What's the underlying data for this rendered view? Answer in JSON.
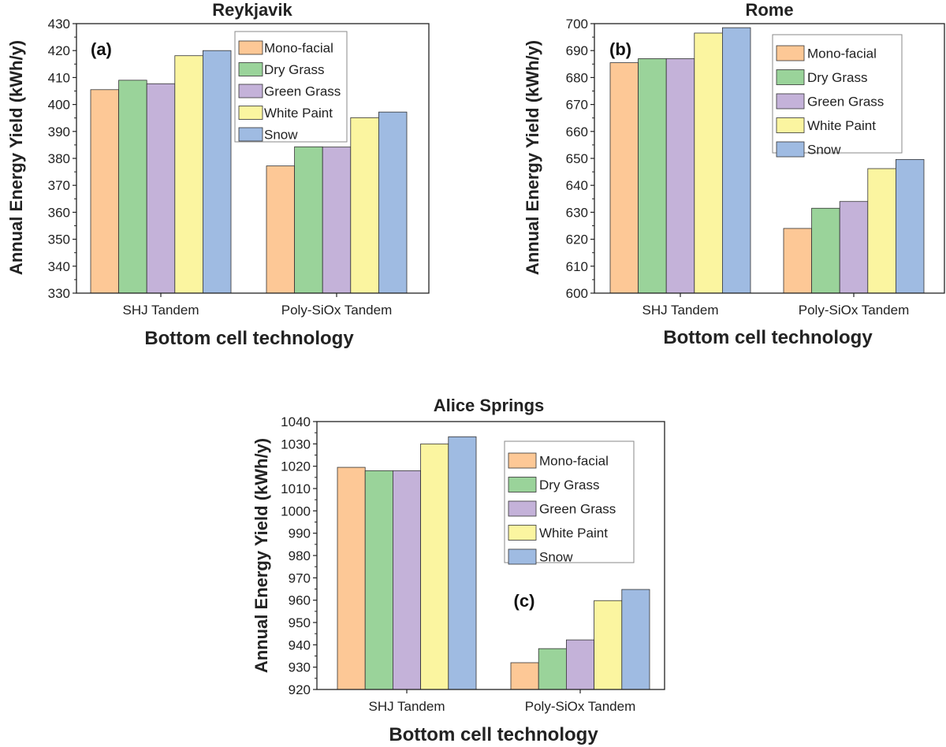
{
  "legend_items": [
    "Mono-facial",
    "Dry Grass",
    "Green Grass",
    "White Paint",
    "Snow"
  ],
  "colors": [
    "#fdc896",
    "#9ad39a",
    "#c4b2d9",
    "#fbf5a0",
    "#9fbbe2"
  ],
  "chart_data": [
    {
      "type": "bar",
      "title": "Reykjavik",
      "panel_label": "(a)",
      "xlabel": "Bottom cell technology",
      "ylabel": "Annual Energy Yield (kWh/y)",
      "categories": [
        "SHJ Tandem",
        "Poly-SiOx Tandem"
      ],
      "ylim": [
        330,
        430
      ],
      "yticks": [
        330,
        340,
        350,
        360,
        370,
        380,
        390,
        400,
        410,
        420,
        430
      ],
      "series": [
        {
          "name": "Mono-facial",
          "values": [
            405.5,
            377.2
          ]
        },
        {
          "name": "Dry Grass",
          "values": [
            409.0,
            384.3
          ]
        },
        {
          "name": "Green Grass",
          "values": [
            407.7,
            384.2
          ]
        },
        {
          "name": "White Paint",
          "values": [
            418.1,
            395.1
          ]
        },
        {
          "name": "Snow",
          "values": [
            420.0,
            397.2
          ]
        }
      ]
    },
    {
      "type": "bar",
      "title": "Rome",
      "panel_label": "(b)",
      "xlabel": "Bottom cell technology",
      "ylabel": "Annual Energy Yield (kWh/y)",
      "categories": [
        "SHJ Tandem",
        "Poly-SiOx Tandem"
      ],
      "ylim": [
        600,
        700
      ],
      "yticks": [
        600,
        610,
        620,
        630,
        640,
        650,
        660,
        670,
        680,
        690,
        700
      ],
      "series": [
        {
          "name": "Mono-facial",
          "values": [
            685.5,
            624.0
          ]
        },
        {
          "name": "Dry Grass",
          "values": [
            687.0,
            631.5
          ]
        },
        {
          "name": "Green Grass",
          "values": [
            687.0,
            634.0
          ]
        },
        {
          "name": "White Paint",
          "values": [
            696.5,
            646.2
          ]
        },
        {
          "name": "Snow",
          "values": [
            698.5,
            649.6
          ]
        }
      ]
    },
    {
      "type": "bar",
      "title": "Alice Springs",
      "panel_label": "(c)",
      "xlabel": "Bottom cell technology",
      "ylabel": "Annual Energy Yield (kWh/y)",
      "categories": [
        "SHJ Tandem",
        "Poly-SiOx Tandem"
      ],
      "ylim": [
        920,
        1040
      ],
      "yticks": [
        920,
        930,
        940,
        950,
        960,
        970,
        980,
        990,
        1000,
        1010,
        1020,
        1030,
        1040
      ],
      "series": [
        {
          "name": "Mono-facial",
          "values": [
            1019.5,
            932.0
          ]
        },
        {
          "name": "Dry Grass",
          "values": [
            1018.0,
            938.3
          ]
        },
        {
          "name": "Green Grass",
          "values": [
            1018.0,
            942.2
          ]
        },
        {
          "name": "White Paint",
          "values": [
            1030.0,
            959.8
          ]
        },
        {
          "name": "Snow",
          "values": [
            1033.2,
            964.8
          ]
        }
      ]
    }
  ]
}
